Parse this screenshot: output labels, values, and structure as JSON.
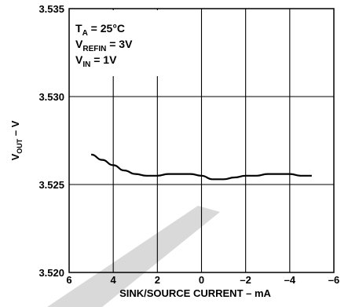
{
  "chart_data": {
    "type": "line",
    "xlabel": "SINK/SOURCE CURRENT – mA",
    "ylabel_main": "V",
    "ylabel_sub": "OUT",
    "ylabel_unit": " – V",
    "xlim": [
      6,
      -6
    ],
    "ylim": [
      3.52,
      3.535
    ],
    "x_ticks": [
      6,
      4,
      2,
      0,
      -2,
      -4,
      -6
    ],
    "x_tick_labels": [
      "6",
      "4",
      "2",
      "0",
      "–2",
      "–4",
      "–6"
    ],
    "y_ticks": [
      3.52,
      3.525,
      3.53,
      3.535
    ],
    "y_tick_labels": [
      "3.520",
      "3.525",
      "3.530",
      "3.535"
    ],
    "grid": true,
    "annotations": [
      {
        "main": "T",
        "sub": "A",
        "rest": " = 25°C"
      },
      {
        "main": "V",
        "sub": "REFIN",
        "rest": " = 3V"
      },
      {
        "main": "V",
        "sub": "IN",
        "rest": " = 1V"
      }
    ],
    "series": [
      {
        "x": [
          5,
          4.5,
          4,
          3.5,
          3,
          2.5,
          2,
          1.5,
          1,
          0.5,
          0,
          -0.5,
          -1,
          -1.5,
          -2,
          -2.5,
          -3,
          -3.5,
          -4,
          -4.5,
          -5
        ],
        "y": [
          3.5267,
          3.5264,
          3.5261,
          3.5258,
          3.5256,
          3.5255,
          3.5255,
          3.5256,
          3.5256,
          3.5256,
          3.5255,
          3.5253,
          3.5253,
          3.5254,
          3.5255,
          3.5255,
          3.5256,
          3.5256,
          3.5256,
          3.5255,
          3.5255
        ]
      }
    ]
  }
}
